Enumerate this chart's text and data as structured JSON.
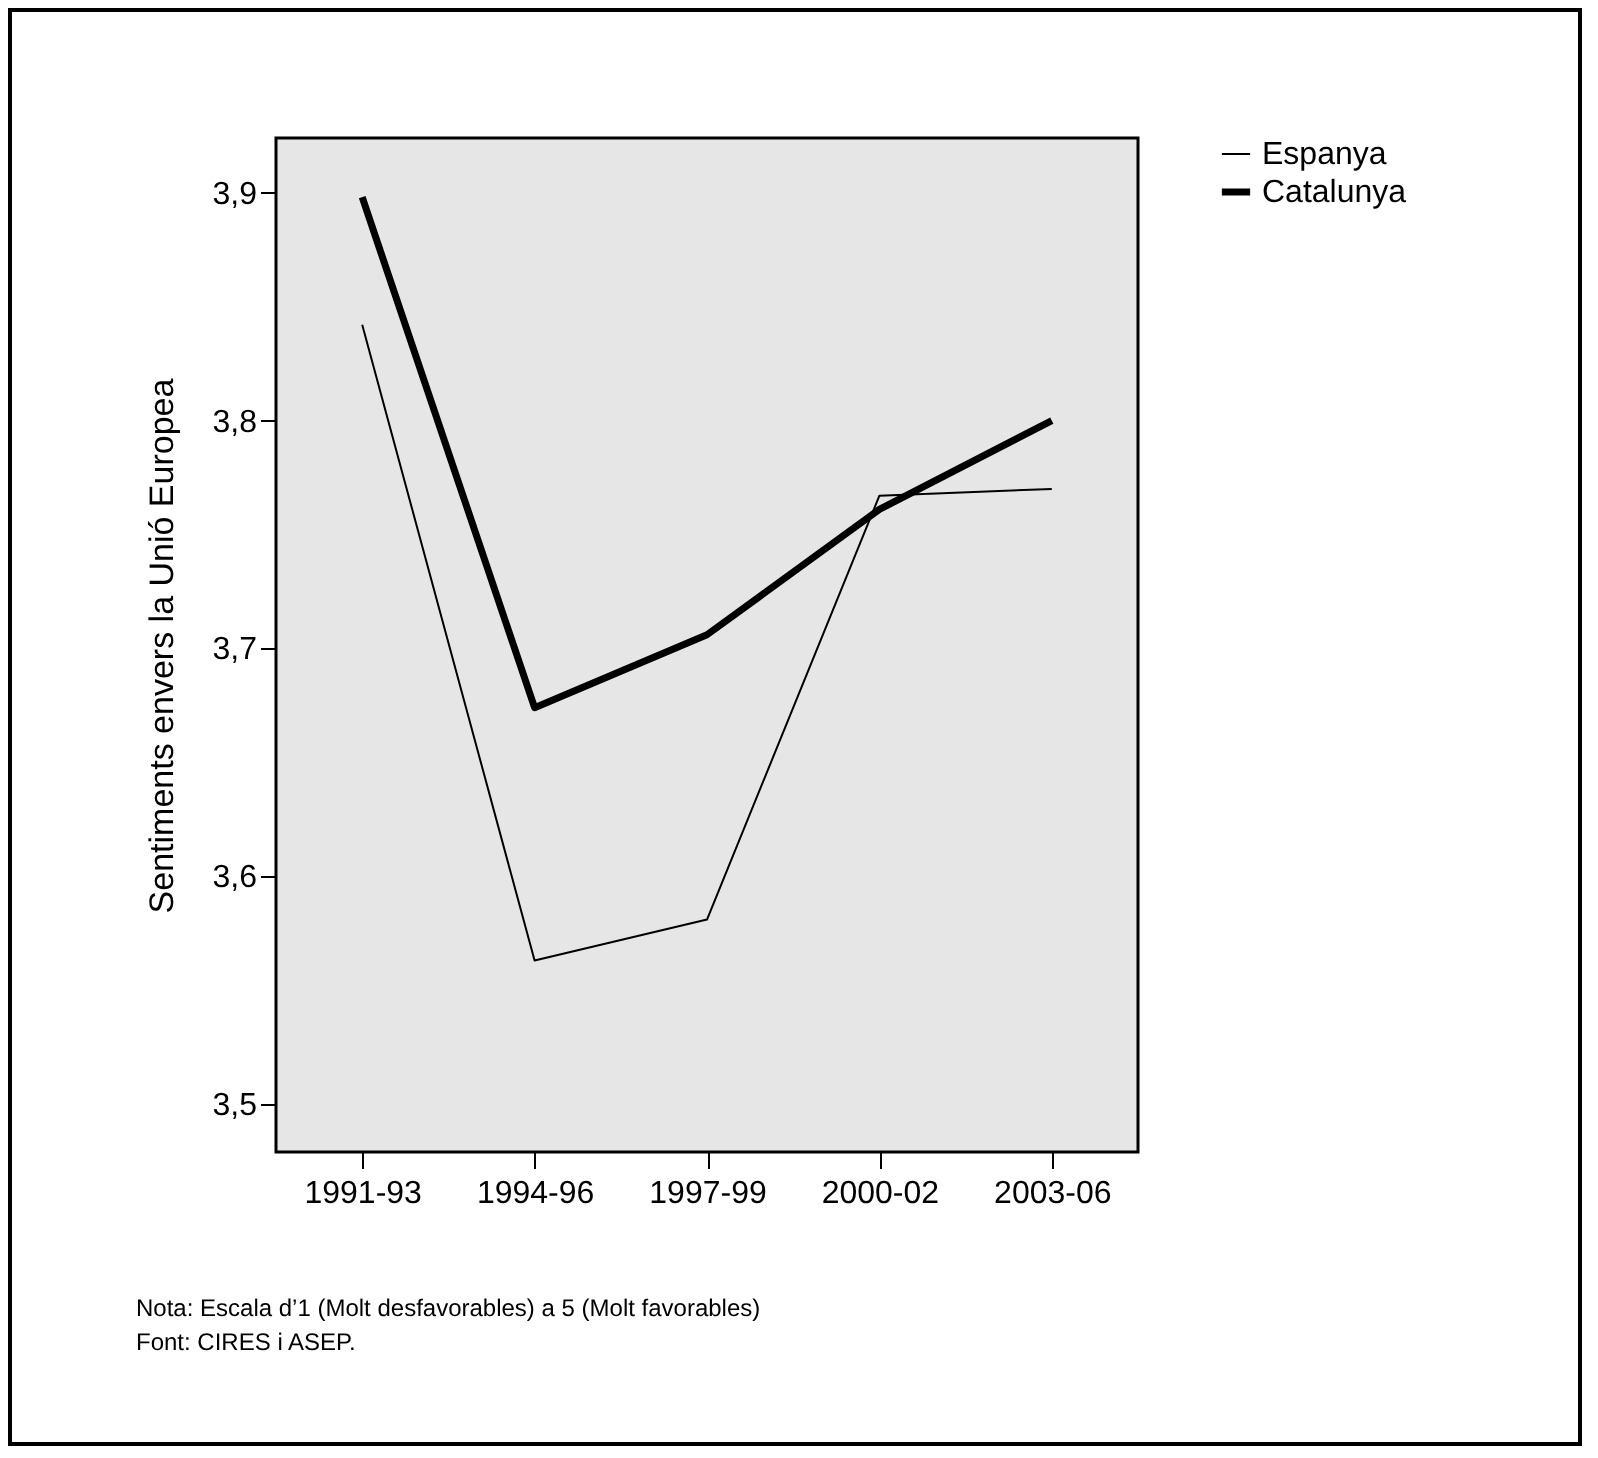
{
  "chart_data": {
    "type": "line",
    "ylabel": "Sentiments envers la Unió Europea",
    "categories": [
      "1991-93",
      "1994-96",
      "1997-99",
      "2000-02",
      "2003-06"
    ],
    "series": [
      {
        "name": "Espanya",
        "color": "#000000",
        "values": [
          3.842,
          3.563,
          3.581,
          3.767,
          3.77
        ]
      },
      {
        "name": "Catalunya",
        "color": "#000000",
        "values": [
          3.898,
          3.674,
          3.706,
          3.761,
          3.8
        ]
      }
    ],
    "ylim": [
      3.479,
      3.924
    ],
    "yticks": [
      {
        "value": 3.5,
        "label": "3,5"
      },
      {
        "value": 3.6,
        "label": "3,6"
      },
      {
        "value": 3.7,
        "label": "3,7"
      },
      {
        "value": 3.8,
        "label": "3,8"
      },
      {
        "value": 3.9,
        "label": "3,9"
      }
    ],
    "grid": false,
    "legend": "top right",
    "annotations": [
      "Nota: Escala d’1 (Molt desfavorables) a 5 (Molt favorables)",
      "Font: CIRES i ASEP."
    ]
  }
}
